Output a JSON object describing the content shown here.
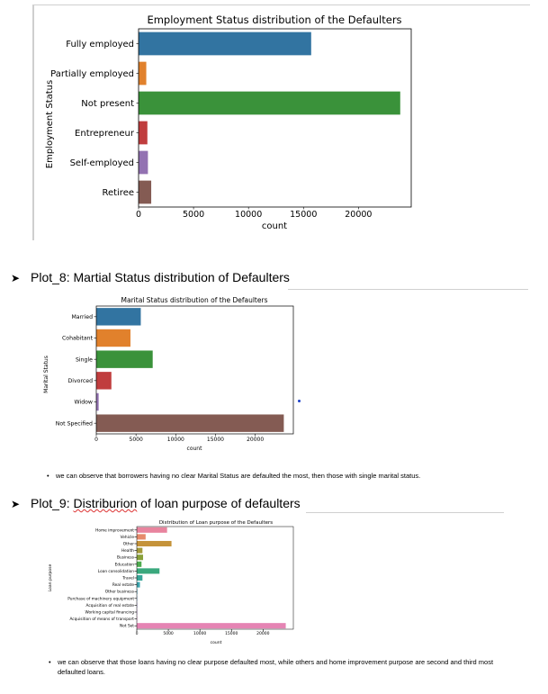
{
  "headings": {
    "plot8": "Plot_8: Martial Status distribution of Defaulters",
    "plot9_prefix": "Plot_9: ",
    "plot9_misspelled": "Distriburion",
    "plot9_rest": " of loan purpose of defaulters"
  },
  "notes": {
    "marital": "we can observe that borrowers having no clear Marital Status are defaulted the most, then those with single marital status.",
    "purpose": "we can observe that those loans having no clear purpose defaulted most, while others and home improvement purpose are second and third most defaulted loans."
  },
  "colors": {
    "blue": "#3274a1",
    "orange": "#e1812c",
    "green": "#3a923a",
    "red": "#c03d3e",
    "purple": "#9372b2",
    "brown": "#845b53",
    "pink": "#d684bd"
  },
  "chart_data": [
    {
      "type": "bar",
      "orientation": "horizontal",
      "title": "Employment Status distribution of the Defaulters",
      "xlabel": "count",
      "ylabel": "Employment Status",
      "categories": [
        "Fully employed",
        "Partially employed",
        "Not present",
        "Entrepreneur",
        "Self-employed",
        "Retiree"
      ],
      "values": [
        15700,
        700,
        23800,
        800,
        850,
        1150
      ],
      "bar_colors": [
        "#3274a1",
        "#e1812c",
        "#3a923a",
        "#c03d3e",
        "#9372b2",
        "#845b53"
      ],
      "xticks": [
        0,
        5000,
        10000,
        15000,
        20000
      ],
      "xlim": [
        0,
        24800
      ]
    },
    {
      "type": "bar",
      "orientation": "horizontal",
      "title": "Marital Status distribution of the Defaulters",
      "xlabel": "count",
      "ylabel": "Marital Status",
      "categories": [
        "Married",
        "Cohabitant",
        "Single",
        "Divorced",
        "Widow",
        "Not Specified"
      ],
      "values": [
        5600,
        4300,
        7100,
        1900,
        300,
        23600
      ],
      "bar_colors": [
        "#3274a1",
        "#e1812c",
        "#3a923a",
        "#c03d3e",
        "#9372b2",
        "#845b53"
      ],
      "xticks": [
        0,
        5000,
        10000,
        15000,
        20000
      ],
      "xlim": [
        0,
        24800
      ]
    },
    {
      "type": "bar",
      "orientation": "horizontal",
      "title": "Distribution of Loan purpose of the Defaulters",
      "xlabel": "count",
      "ylabel": "Loan purpose",
      "categories": [
        "Home improvement",
        "Vehicle",
        "Other",
        "Health",
        "Business",
        "Education",
        "Loan consolidation",
        "Travel",
        "Real estate",
        "Other business",
        "Purchase of machinery equipment",
        "Acquisition of real estate",
        "Working capital financing",
        "Acquisition of means of transport",
        "Not Set"
      ],
      "values": [
        4800,
        1400,
        5500,
        900,
        1000,
        750,
        3600,
        900,
        500,
        80,
        40,
        30,
        40,
        30,
        23600
      ],
      "bar_colors": [
        "#e8849e",
        "#e68a6b",
        "#c5933a",
        "#a49a3a",
        "#89a13a",
        "#4eab4e",
        "#3aa87d",
        "#38a698",
        "#3aa4ae",
        "#3aa0c4",
        "#5e9ddf",
        "#9a8fe3",
        "#c484e3",
        "#e07dcc",
        "#e584b4"
      ],
      "xticks": [
        0,
        5000,
        10000,
        15000,
        20000
      ],
      "xlim": [
        0,
        24800
      ]
    }
  ]
}
